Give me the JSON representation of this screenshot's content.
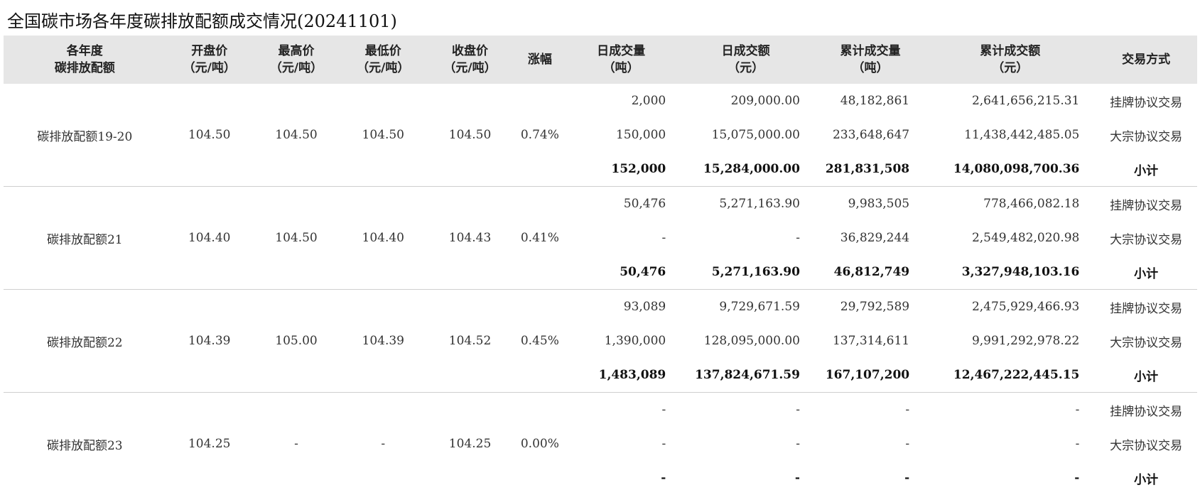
{
  "title": "全国碳市场各年度碳排放配额成交情况(20241101)",
  "headers": [
    [
      "各年度",
      "碳排放配额"
    ],
    [
      "开盘价",
      "（元/吨）"
    ],
    [
      "最高价",
      "（元/吨）"
    ],
    [
      "最低价",
      "（元/吨）"
    ],
    [
      "收盘价",
      "（元/吨）"
    ],
    [
      "涨幅",
      ""
    ],
    [
      "日成交量",
      "（吨）"
    ],
    [
      "日成交额",
      "（元）"
    ],
    [
      "累计成交量",
      "（吨）"
    ],
    [
      "累计成交额",
      "（元）"
    ],
    [
      "交易方式",
      ""
    ]
  ],
  "groups": [
    {
      "name": "碳排放配额19-20",
      "open": "104.50",
      "high": "104.50",
      "low": "104.50",
      "close": "104.50",
      "change": "0.74%",
      "rows": [
        {
          "day_volume": "2,000",
          "day_amount": "209,000.00",
          "cum_volume": "48,182,861",
          "cum_amount": "2,641,656,215.31",
          "type": "挂牌协议交易"
        },
        {
          "day_volume": "150,000",
          "day_amount": "15,075,000.00",
          "cum_volume": "233,648,647",
          "cum_amount": "11,438,442,485.05",
          "type": "大宗协议交易"
        },
        {
          "day_volume": "152,000",
          "day_amount": "15,284,000.00",
          "cum_volume": "281,831,508",
          "cum_amount": "14,080,098,700.36",
          "type": "小计"
        }
      ]
    },
    {
      "name": "碳排放配额21",
      "open": "104.40",
      "high": "104.50",
      "low": "104.40",
      "close": "104.43",
      "change": "0.41%",
      "rows": [
        {
          "day_volume": "50,476",
          "day_amount": "5,271,163.90",
          "cum_volume": "9,983,505",
          "cum_amount": "778,466,082.18",
          "type": "挂牌协议交易"
        },
        {
          "day_volume": "-",
          "day_amount": "-",
          "cum_volume": "36,829,244",
          "cum_amount": "2,549,482,020.98",
          "type": "大宗协议交易"
        },
        {
          "day_volume": "50,476",
          "day_amount": "5,271,163.90",
          "cum_volume": "46,812,749",
          "cum_amount": "3,327,948,103.16",
          "type": "小计"
        }
      ]
    },
    {
      "name": "碳排放配额22",
      "open": "104.39",
      "high": "105.00",
      "low": "104.39",
      "close": "104.52",
      "change": "0.45%",
      "rows": [
        {
          "day_volume": "93,089",
          "day_amount": "9,729,671.59",
          "cum_volume": "29,792,589",
          "cum_amount": "2,475,929,466.93",
          "type": "挂牌协议交易"
        },
        {
          "day_volume": "1,390,000",
          "day_amount": "128,095,000.00",
          "cum_volume": "137,314,611",
          "cum_amount": "9,991,292,978.22",
          "type": "大宗协议交易"
        },
        {
          "day_volume": "1,483,089",
          "day_amount": "137,824,671.59",
          "cum_volume": "167,107,200",
          "cum_amount": "12,467,222,445.15",
          "type": "小计"
        }
      ]
    },
    {
      "name": "碳排放配额23",
      "open": "104.25",
      "high": "-",
      "low": "-",
      "close": "104.25",
      "change": "0.00%",
      "rows": [
        {
          "day_volume": "-",
          "day_amount": "-",
          "cum_volume": "-",
          "cum_amount": "-",
          "type": "挂牌协议交易"
        },
        {
          "day_volume": "-",
          "day_amount": "-",
          "cum_volume": "-",
          "cum_amount": "-",
          "type": "大宗协议交易"
        },
        {
          "day_volume": "-",
          "day_amount": "-",
          "cum_volume": "-",
          "cum_amount": "-",
          "type": "小计"
        }
      ]
    }
  ]
}
